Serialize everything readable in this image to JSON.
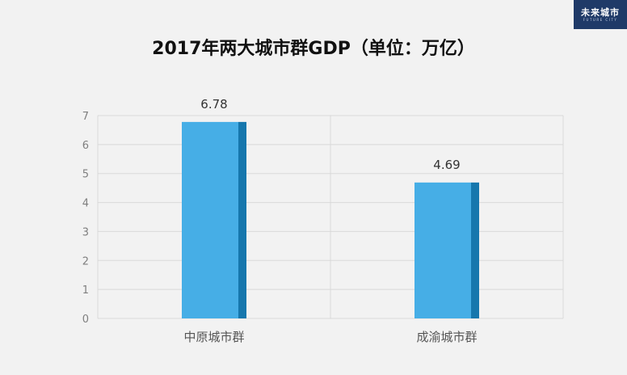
{
  "logo": {
    "text": "未来城市",
    "subtext": "FUTURE CITY"
  },
  "chart_data": {
    "type": "bar",
    "title": "2017年两大城市群GDP（单位：万亿）",
    "categories": [
      "中原城市群",
      "成渝城市群"
    ],
    "values": [
      6.78,
      4.69
    ],
    "data_labels": [
      "6.78",
      "4.69"
    ],
    "ylim": [
      0,
      7
    ],
    "yticks": [
      0,
      1,
      2,
      3,
      4,
      5,
      6,
      7
    ],
    "xlabel": "",
    "ylabel": "",
    "grid": true,
    "legend": "none",
    "colors": {
      "bar_face": "#46aee6",
      "bar_side": "#1677ad",
      "grid": "#d9d9d9",
      "axis_text": "#7f7f7f"
    }
  }
}
